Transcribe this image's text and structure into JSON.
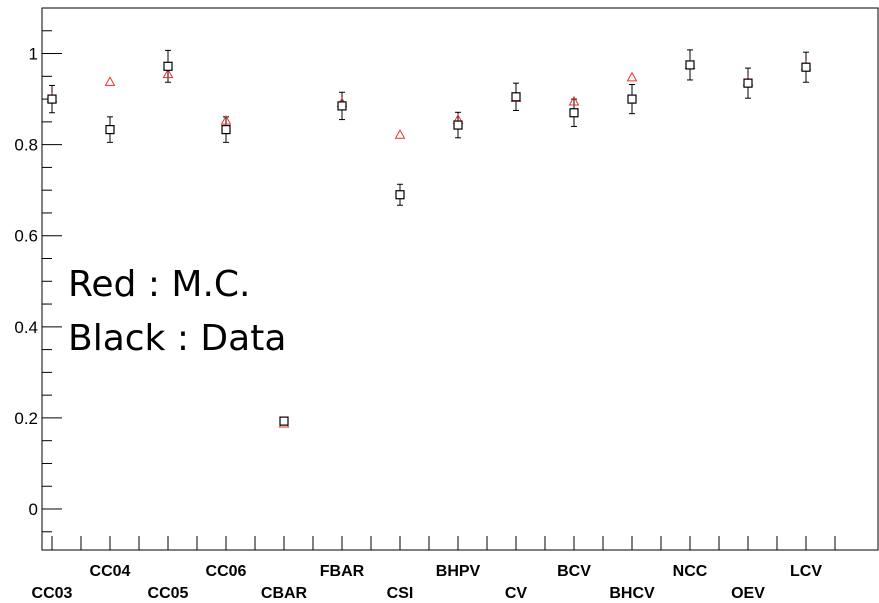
{
  "chart_data": {
    "type": "scatter",
    "categories": [
      "CC03",
      "CC04",
      "CC05",
      "CC06",
      "CBAR",
      "FBAR",
      "CSI",
      "BHPV",
      "CV",
      "BCV",
      "BHCV",
      "NCC",
      "OEV",
      "LCV"
    ],
    "ylim": [
      -0.09,
      1.1
    ],
    "yticks": [
      0,
      0.2,
      0.4,
      0.6,
      0.8,
      1
    ],
    "ytick_labels": [
      "0",
      "0.2",
      "0.4",
      "0.6",
      "0.8",
      "1"
    ],
    "grid": false,
    "series": [
      {
        "marker": "triangle",
        "color": "#e8322c",
        "values": [
          0.902,
          0.938,
          0.955,
          0.853,
          0.188,
          0.892,
          0.822,
          0.855,
          0.903,
          0.895,
          0.948,
          0.975,
          0.938,
          0.972
        ]
      },
      {
        "marker": "square",
        "color": "#000000",
        "values": [
          0.9,
          0.833,
          0.972,
          0.833,
          0.193,
          0.885,
          0.69,
          0.843,
          0.905,
          0.87,
          0.9,
          0.975,
          0.935,
          0.97
        ],
        "errors": [
          0.03,
          0.028,
          0.035,
          0.028,
          0.008,
          0.03,
          0.023,
          0.028,
          0.03,
          0.03,
          0.032,
          0.033,
          0.033,
          0.033
        ]
      }
    ],
    "annotations": [
      "Red : M.C.",
      "Black : Data"
    ]
  }
}
